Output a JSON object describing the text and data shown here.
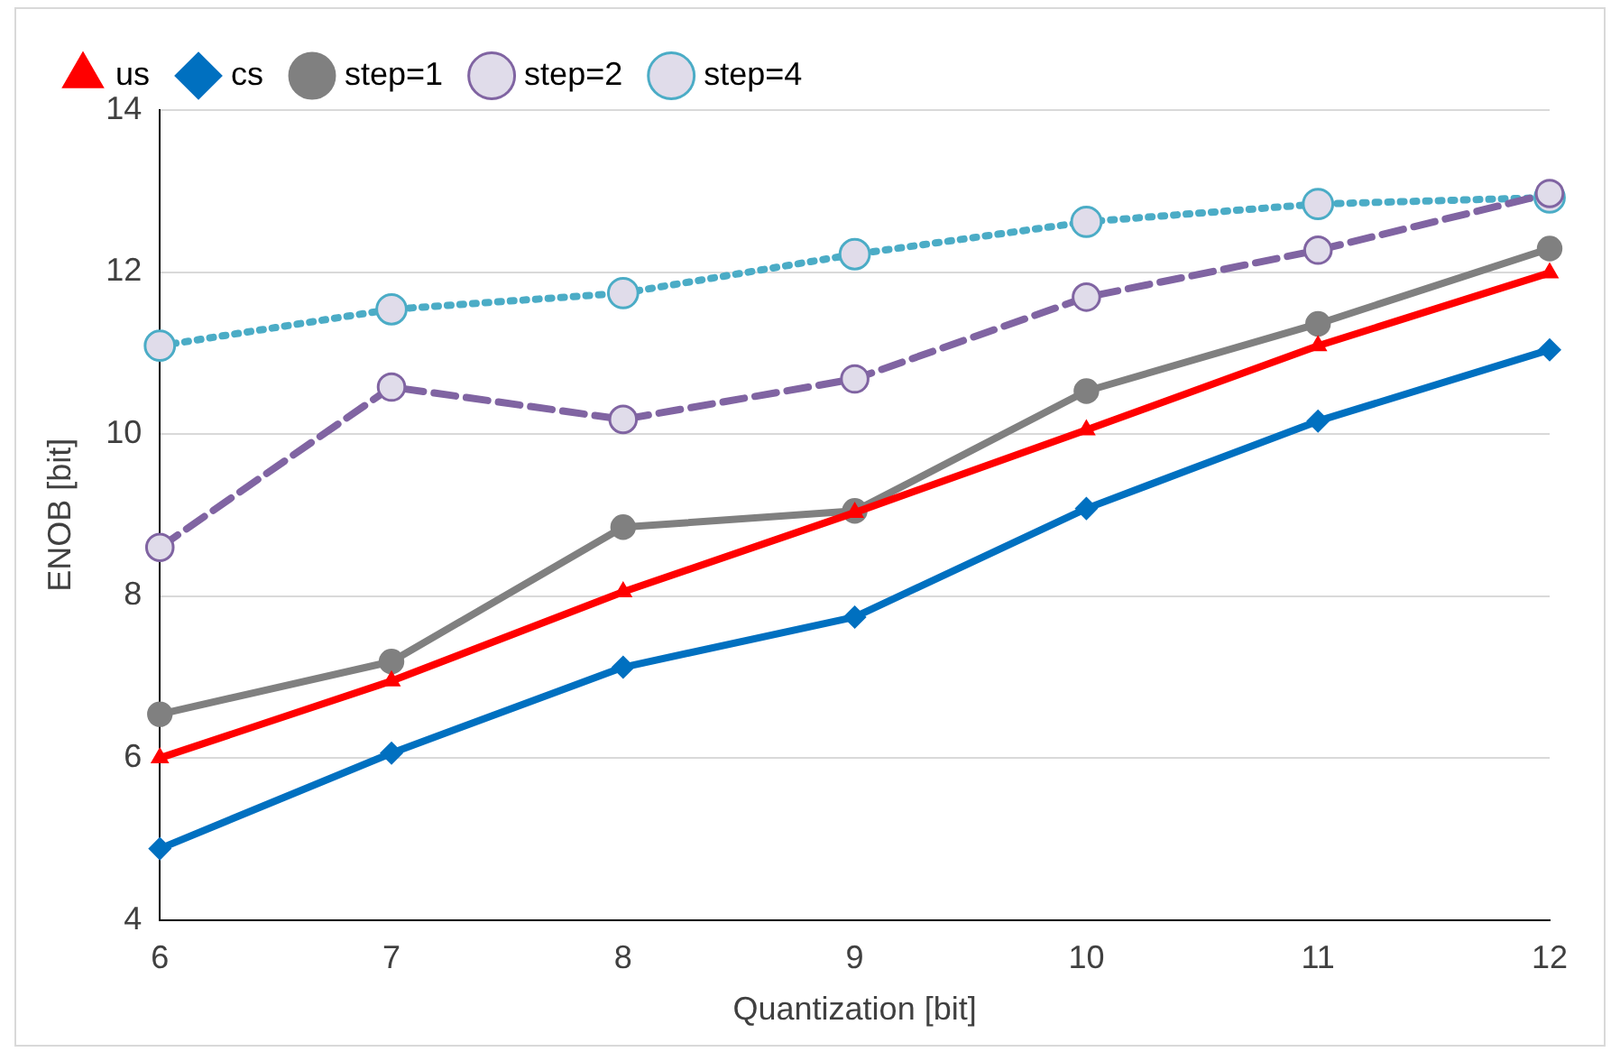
{
  "chart_data": {
    "type": "line",
    "xlabel": "Quantization [bit]",
    "ylabel": "ENOB [bit]",
    "categories": [
      "6",
      "7",
      "8",
      "9",
      "10",
      "11",
      "12"
    ],
    "series": [
      {
        "name": "us",
        "color": "#ff0000",
        "marker": "triangle",
        "line_style": "solid",
        "values": [
          6.0,
          6.95,
          8.05,
          9.03,
          10.05,
          11.09,
          11.99
        ]
      },
      {
        "name": "cs",
        "color": "#0070c0",
        "marker": "diamond",
        "line_style": "solid",
        "values": [
          4.88,
          6.06,
          7.12,
          7.74,
          9.08,
          10.16,
          11.04
        ]
      },
      {
        "name": "step=1",
        "color": "#808080",
        "marker": "circle",
        "line_style": "solid",
        "values": [
          6.54,
          7.19,
          8.85,
          9.05,
          10.53,
          11.36,
          12.29
        ]
      },
      {
        "name": "step=2",
        "color": "#8064a2",
        "marker": "circle",
        "line_style": "dashed",
        "values": [
          8.6,
          10.58,
          10.18,
          10.68,
          11.69,
          12.27,
          12.97
        ]
      },
      {
        "name": "step=4",
        "color": "#4bacc6",
        "marker": "circle",
        "line_style": "dotted",
        "values": [
          11.09,
          11.54,
          11.74,
          12.22,
          12.62,
          12.84,
          12.92
        ]
      }
    ],
    "ylim": [
      4,
      14
    ],
    "yticks": [
      4,
      6,
      8,
      10,
      12,
      14
    ],
    "grid": "y",
    "legend": "top"
  }
}
